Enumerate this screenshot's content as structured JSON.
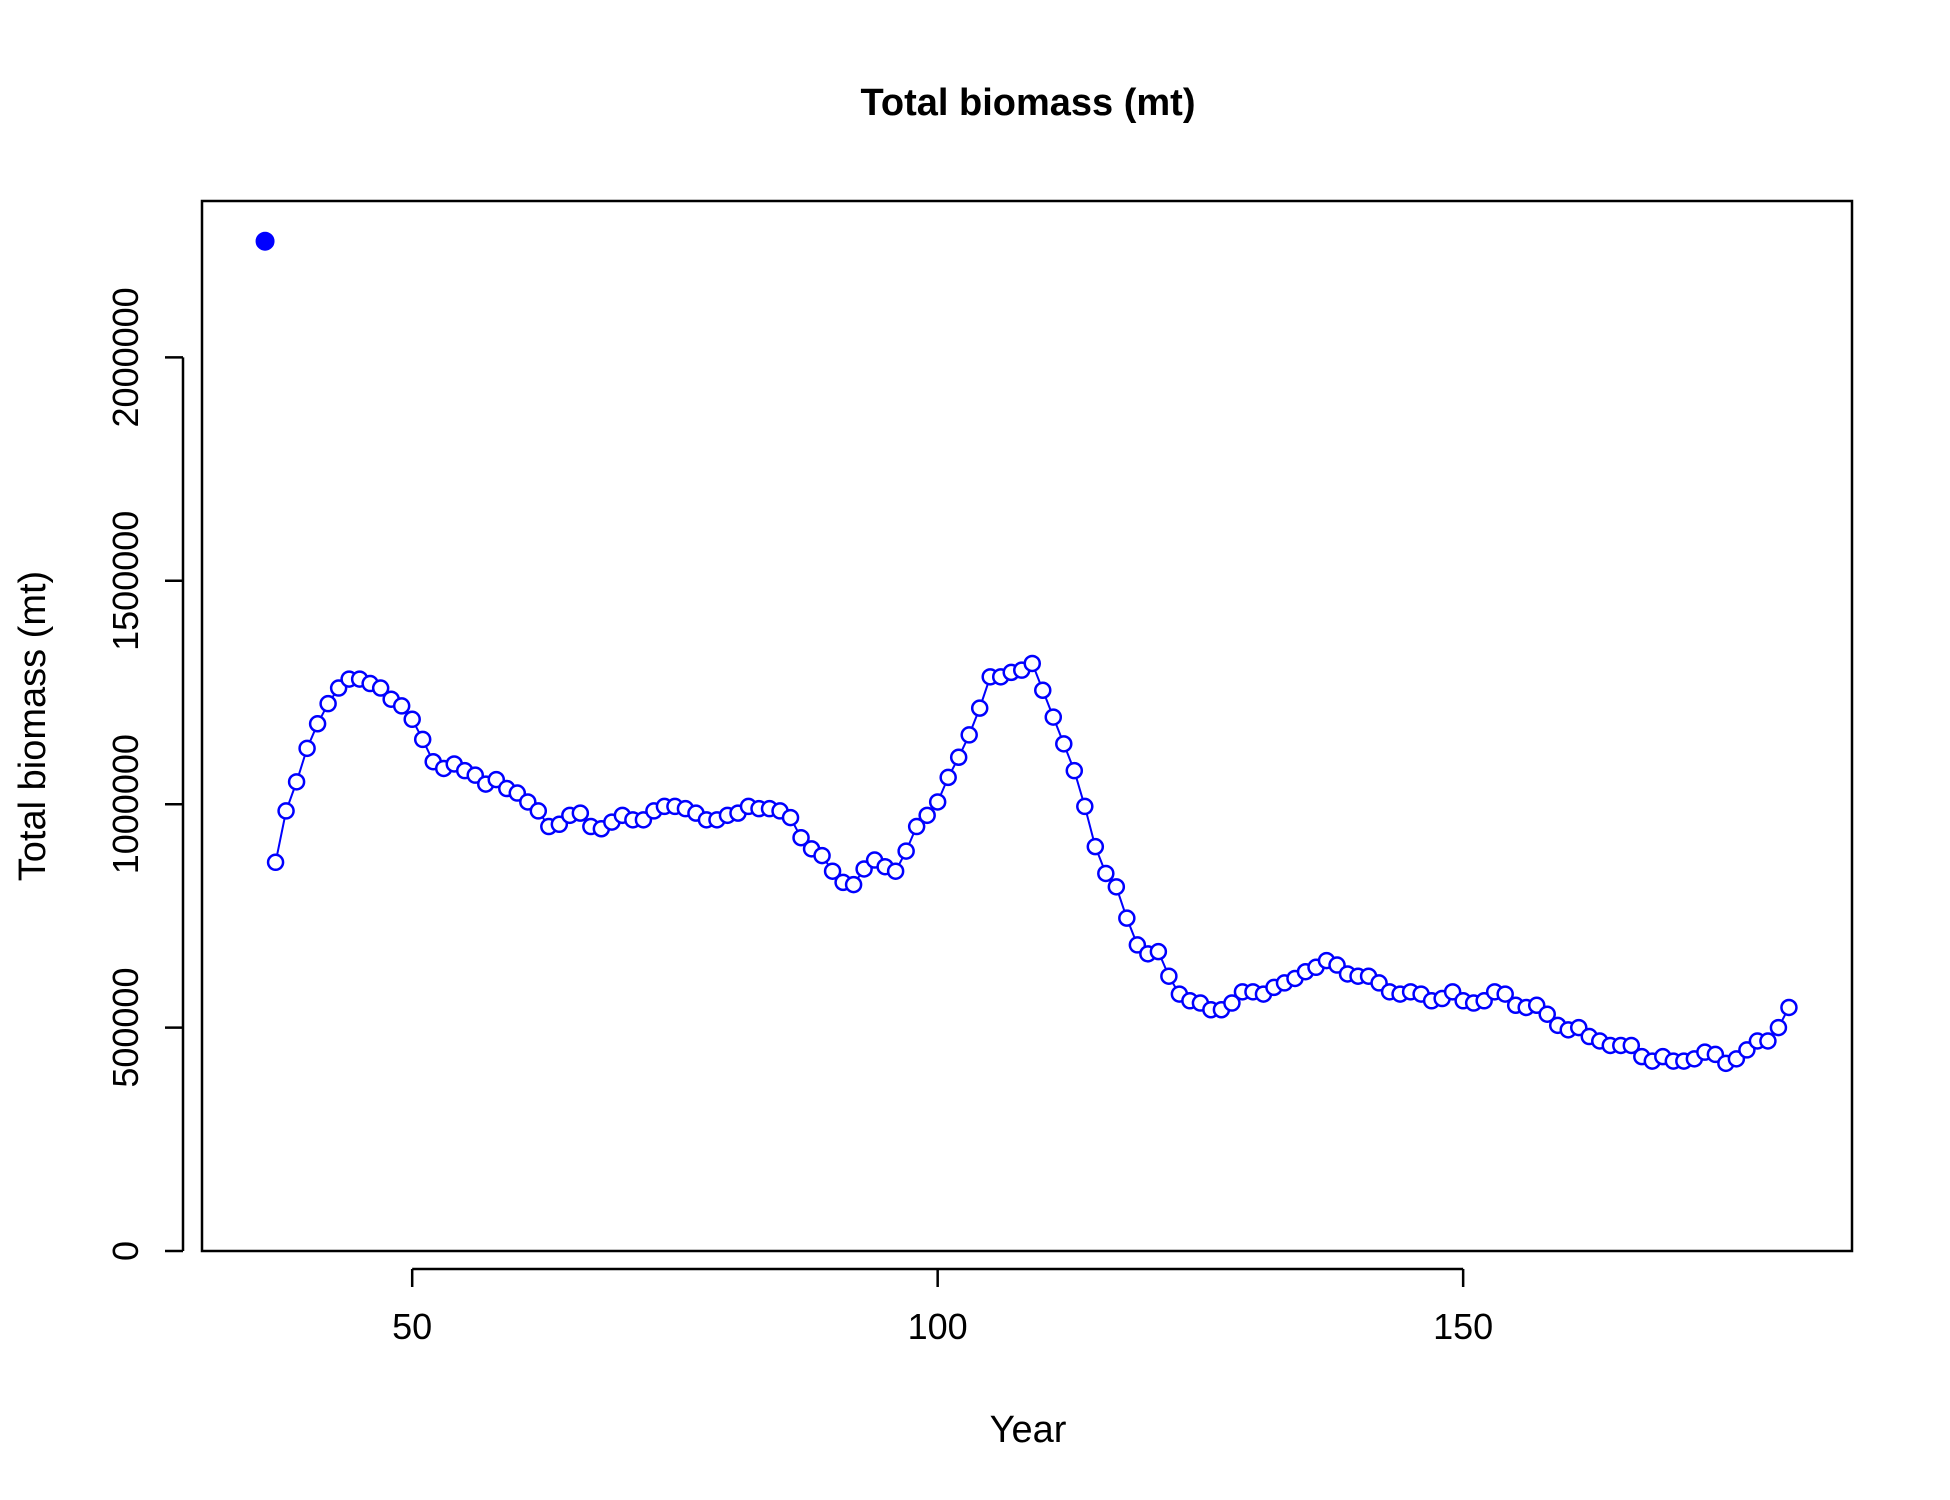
{
  "chart_data": {
    "type": "line",
    "title": "Total biomass (mt)",
    "xlabel": "Year",
    "ylabel": "Total biomass (mt)",
    "xlim": [
      30,
      187
    ],
    "ylim": [
      0,
      2350000
    ],
    "xticks": [
      50,
      100,
      150
    ],
    "yticks": [
      0,
      500000,
      1000000,
      1500000,
      2000000
    ],
    "grid": false,
    "legend": "none",
    "series_color": "#0000FF",
    "initial_point": {
      "x": 36,
      "y": 2260000
    },
    "series": [
      {
        "x": [
          37,
          38,
          39,
          40,
          41,
          42,
          43,
          44,
          45,
          46,
          47,
          48,
          49,
          50,
          51,
          52,
          53,
          54,
          55,
          56,
          57,
          58,
          59,
          60,
          61,
          62,
          63,
          64,
          65,
          66,
          67,
          68,
          69,
          70,
          71,
          72,
          73,
          74,
          75,
          76,
          77,
          78,
          79,
          80,
          81,
          82,
          83,
          84,
          85,
          86,
          87,
          88,
          89,
          90,
          91,
          92,
          93,
          94,
          95,
          96,
          97,
          98,
          99,
          100,
          101,
          102,
          103,
          104,
          105,
          106,
          107,
          108,
          109,
          110,
          111,
          112,
          113,
          114,
          115,
          116,
          117,
          118,
          119,
          120,
          121,
          122,
          123,
          124,
          125,
          126,
          127,
          128,
          129,
          130,
          131,
          132,
          133,
          134,
          135,
          136,
          137,
          138,
          139,
          140,
          141,
          142,
          143,
          144,
          145,
          146,
          147,
          148,
          149,
          150,
          151,
          152,
          153,
          154,
          155,
          156,
          157,
          158,
          159,
          160,
          161,
          162,
          163,
          164,
          165,
          166,
          167,
          168,
          169,
          170,
          171,
          172,
          173,
          174,
          175,
          176,
          177,
          178,
          179,
          180,
          181
        ],
        "y": [
          870000,
          985000,
          1050000,
          1125000,
          1180000,
          1225000,
          1260000,
          1280000,
          1280000,
          1270000,
          1260000,
          1235000,
          1220000,
          1190000,
          1145000,
          1095000,
          1080000,
          1090000,
          1075000,
          1065000,
          1045000,
          1055000,
          1035000,
          1025000,
          1005000,
          985000,
          950000,
          955000,
          975000,
          980000,
          950000,
          945000,
          960000,
          975000,
          965000,
          965000,
          985000,
          995000,
          995000,
          990000,
          980000,
          965000,
          965000,
          975000,
          980000,
          995000,
          990000,
          990000,
          985000,
          970000,
          925000,
          900000,
          885000,
          850000,
          825000,
          820000,
          855000,
          875000,
          860000,
          850000,
          895000,
          950000,
          975000,
          1005000,
          1060000,
          1105000,
          1155000,
          1215000,
          1285000,
          1285000,
          1295000,
          1300000,
          1315000,
          1255000,
          1195000,
          1135000,
          1075000,
          995000,
          905000,
          845000,
          815000,
          745000,
          685000,
          665000,
          670000,
          615000,
          575000,
          560000,
          555000,
          540000,
          540000,
          555000,
          580000,
          580000,
          575000,
          590000,
          600000,
          610000,
          625000,
          635000,
          650000,
          640000,
          620000,
          615000,
          615000,
          600000,
          580000,
          575000,
          580000,
          575000,
          560000,
          565000,
          580000,
          560000,
          555000,
          560000,
          580000,
          575000,
          550000,
          545000,
          550000,
          530000,
          505000,
          495000,
          500000,
          480000,
          470000,
          460000,
          460000,
          460000,
          435000,
          425000,
          435000,
          425000,
          425000,
          430000,
          445000,
          440000,
          420000,
          430000,
          450000,
          470000,
          470000,
          500000,
          545000
        ]
      }
    ]
  }
}
